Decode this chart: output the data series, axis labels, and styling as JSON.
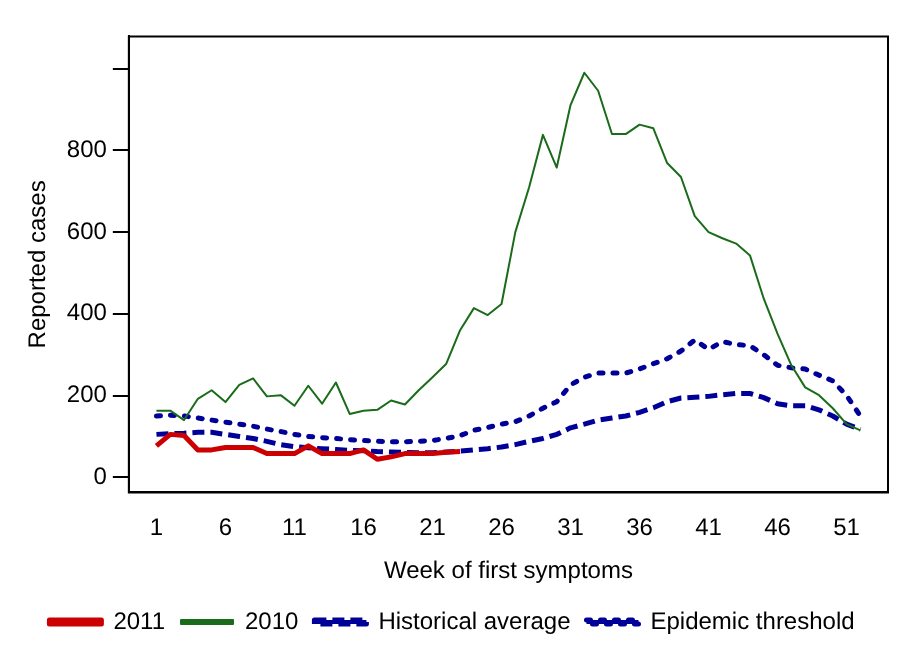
{
  "chart_data": {
    "type": "line",
    "xlabel": "Week of first symptoms",
    "ylabel": "Reported cases",
    "xlim": [
      -1,
      54
    ],
    "xticks": [
      1,
      6,
      11,
      16,
      21,
      26,
      31,
      36,
      41,
      46,
      51
    ],
    "ylim": [
      -37,
      1079
    ],
    "yticks": [
      0,
      200,
      400,
      600,
      800,
      {
        "value": 1000,
        "label": null
      }
    ],
    "grid": false,
    "legend": "bottom",
    "marker": "none",
    "x": [
      1,
      2,
      3,
      4,
      5,
      6,
      7,
      8,
      9,
      10,
      11,
      12,
      13,
      14,
      15,
      16,
      17,
      18,
      19,
      20,
      21,
      22,
      23,
      24,
      25,
      26,
      27,
      28,
      29,
      30,
      31,
      32,
      33,
      34,
      35,
      36,
      37,
      38,
      39,
      40,
      41,
      42,
      43,
      44,
      45,
      46,
      47,
      48,
      49,
      50,
      51,
      52
    ],
    "series": [
      {
        "name": "2011",
        "color": "#cc0000",
        "line_style": "solid",
        "values": [
          77,
          105,
          102,
          67,
          67,
          73,
          73,
          73,
          58,
          58,
          58,
          77,
          58,
          58,
          58,
          67,
          44,
          50,
          58,
          58,
          58,
          61,
          63,
          null,
          null,
          null,
          null,
          null,
          null,
          null,
          null,
          null,
          null,
          null,
          null,
          null,
          null,
          null,
          null,
          null,
          null,
          null,
          null,
          null,
          null,
          null,
          null,
          null,
          null,
          null,
          null,
          null
        ]
      },
      {
        "name": "2010",
        "color": "#1a6b1a",
        "line_style": "solid",
        "values": [
          163,
          163,
          140,
          192,
          213,
          184,
          226,
          242,
          198,
          201,
          175,
          224,
          180,
          232,
          155,
          163,
          165,
          188,
          178,
          213,
          245,
          278,
          360,
          414,
          397,
          424,
          600,
          710,
          838,
          758,
          911,
          990,
          946,
          840,
          840,
          863,
          854,
          769,
          735,
          639,
          600,
          585,
          572,
          543,
          437,
          351,
          274,
          220,
          201,
          169,
          130,
          115
        ]
      },
      {
        "name": "Historical average",
        "color": "#000099",
        "line_style": "dashed",
        "values": [
          105,
          107,
          108,
          110,
          110,
          105,
          100,
          95,
          88,
          80,
          75,
          72,
          70,
          68,
          66,
          65,
          63,
          62,
          61,
          60,
          60,
          62,
          64,
          67,
          70,
          74,
          80,
          88,
          95,
          105,
          121,
          130,
          140,
          145,
          150,
          159,
          170,
          185,
          194,
          196,
          198,
          202,
          205,
          205,
          195,
          180,
          175,
          175,
          165,
          150,
          130,
          117
        ]
      },
      {
        "name": "Epidemic threshold",
        "color": "#000099",
        "line_style": "dotted",
        "values": [
          150,
          152,
          150,
          145,
          140,
          135,
          130,
          125,
          118,
          112,
          105,
          100,
          97,
          95,
          92,
          90,
          88,
          87,
          87,
          88,
          90,
          95,
          102,
          115,
          122,
          130,
          136,
          150,
          169,
          185,
          226,
          245,
          255,
          255,
          255,
          265,
          278,
          290,
          309,
          336,
          313,
          332,
          325,
          322,
          300,
          274,
          268,
          265,
          250,
          236,
          200,
          150
        ]
      }
    ]
  }
}
